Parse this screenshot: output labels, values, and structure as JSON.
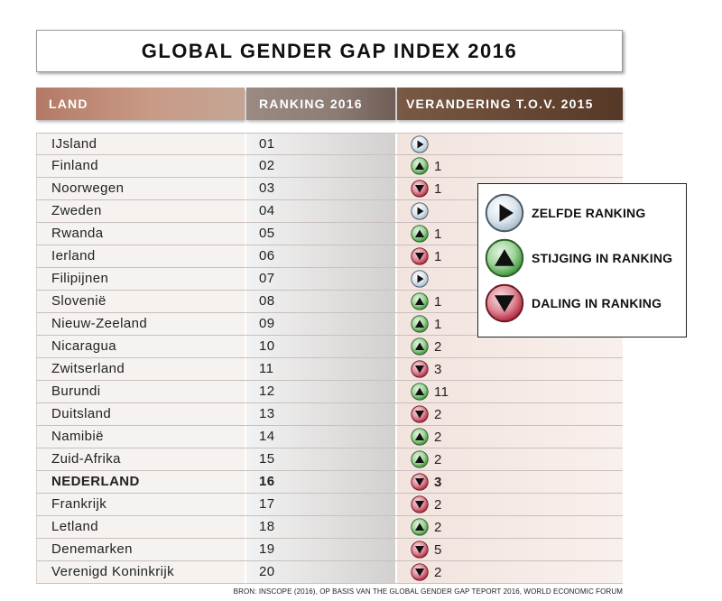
{
  "title": "GLOBAL GENDER GAP INDEX 2016",
  "headers": {
    "land": "LAND",
    "ranking": "RANKING 2016",
    "verandering": "VERANDERING T.O.V. 2015"
  },
  "legend": {
    "same": "ZELFDE RANKING",
    "up": "STIJGING IN RANKING",
    "down": "DALING IN RANKING"
  },
  "source": "BRON: INSCOPE (2016), OP BASIS VAN THE GLOBAL GENDER GAP TEPORT 2016, WORLD ECONOMIC FORUM",
  "colors": {
    "up": "#3f9a3a",
    "down": "#b8203a",
    "same": "#7f9db2"
  },
  "chart_data": {
    "type": "table",
    "title": "GLOBAL GENDER GAP INDEX 2016",
    "columns": [
      "LAND",
      "RANKING 2016",
      "VERANDERING T.O.V. 2015"
    ],
    "rows": [
      {
        "land": "IJsland",
        "rank": "01",
        "dir": "same",
        "change": ""
      },
      {
        "land": "Finland",
        "rank": "02",
        "dir": "up",
        "change": "1"
      },
      {
        "land": "Noorwegen",
        "rank": "03",
        "dir": "down",
        "change": "1"
      },
      {
        "land": "Zweden",
        "rank": "04",
        "dir": "same",
        "change": ""
      },
      {
        "land": "Rwanda",
        "rank": "05",
        "dir": "up",
        "change": "1"
      },
      {
        "land": "Ierland",
        "rank": "06",
        "dir": "down",
        "change": "1"
      },
      {
        "land": "Filipijnen",
        "rank": "07",
        "dir": "same",
        "change": ""
      },
      {
        "land": "Slovenië",
        "rank": "08",
        "dir": "up",
        "change": "1"
      },
      {
        "land": "Nieuw-Zeeland",
        "rank": "09",
        "dir": "up",
        "change": "1"
      },
      {
        "land": "Nicaragua",
        "rank": "10",
        "dir": "up",
        "change": "2"
      },
      {
        "land": "Zwitserland",
        "rank": "11",
        "dir": "down",
        "change": "3"
      },
      {
        "land": "Burundi",
        "rank": "12",
        "dir": "up",
        "change": "11"
      },
      {
        "land": "Duitsland",
        "rank": "13",
        "dir": "down",
        "change": "2"
      },
      {
        "land": "Namibië",
        "rank": "14",
        "dir": "up",
        "change": "2"
      },
      {
        "land": "Zuid-Afrika",
        "rank": "15",
        "dir": "up",
        "change": "2"
      },
      {
        "land": "NEDERLAND",
        "rank": "16",
        "dir": "down",
        "change": "3",
        "bold": true
      },
      {
        "land": "Frankrijk",
        "rank": "17",
        "dir": "down",
        "change": "2"
      },
      {
        "land": "Letland",
        "rank": "18",
        "dir": "up",
        "change": "2"
      },
      {
        "land": "Denemarken",
        "rank": "19",
        "dir": "down",
        "change": "5"
      },
      {
        "land": "Verenigd Koninkrijk",
        "rank": "20",
        "dir": "down",
        "change": "2"
      }
    ]
  }
}
